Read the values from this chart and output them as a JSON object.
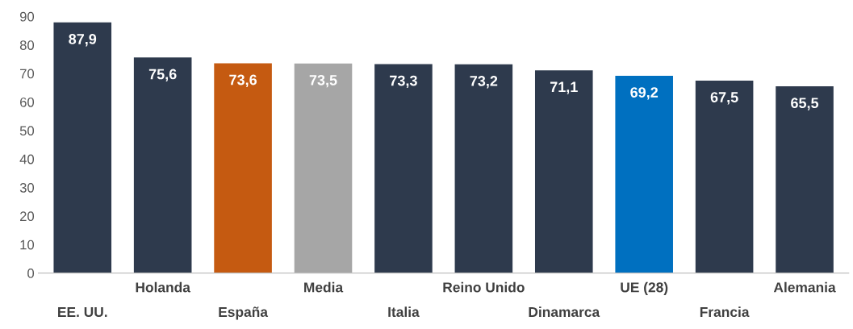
{
  "chart_data": {
    "type": "bar",
    "categories": [
      "EE. UU.",
      "Holanda",
      "España",
      "Media",
      "Italia",
      "Reino Unido",
      "Dinamarca",
      "UE (28)",
      "Francia",
      "Alemania"
    ],
    "values": [
      87.9,
      75.6,
      73.6,
      73.5,
      73.3,
      73.2,
      71.1,
      69.2,
      67.5,
      65.5
    ],
    "colors": [
      "#2e3a4d",
      "#2e3a4d",
      "#c55a11",
      "#a6a6a6",
      "#2e3a4d",
      "#2e3a4d",
      "#2e3a4d",
      "#0070c0",
      "#2e3a4d",
      "#2e3a4d"
    ],
    "value_labels": [
      "87,9",
      "75,6",
      "73,6",
      "73,5",
      "73,3",
      "73,2",
      "71,1",
      "69,2",
      "67,5",
      "65,5"
    ],
    "ylim": [
      0,
      90
    ],
    "yticks": [
      0,
      10,
      20,
      30,
      40,
      50,
      60,
      70,
      80,
      90
    ],
    "grid": false,
    "legend": false
  }
}
